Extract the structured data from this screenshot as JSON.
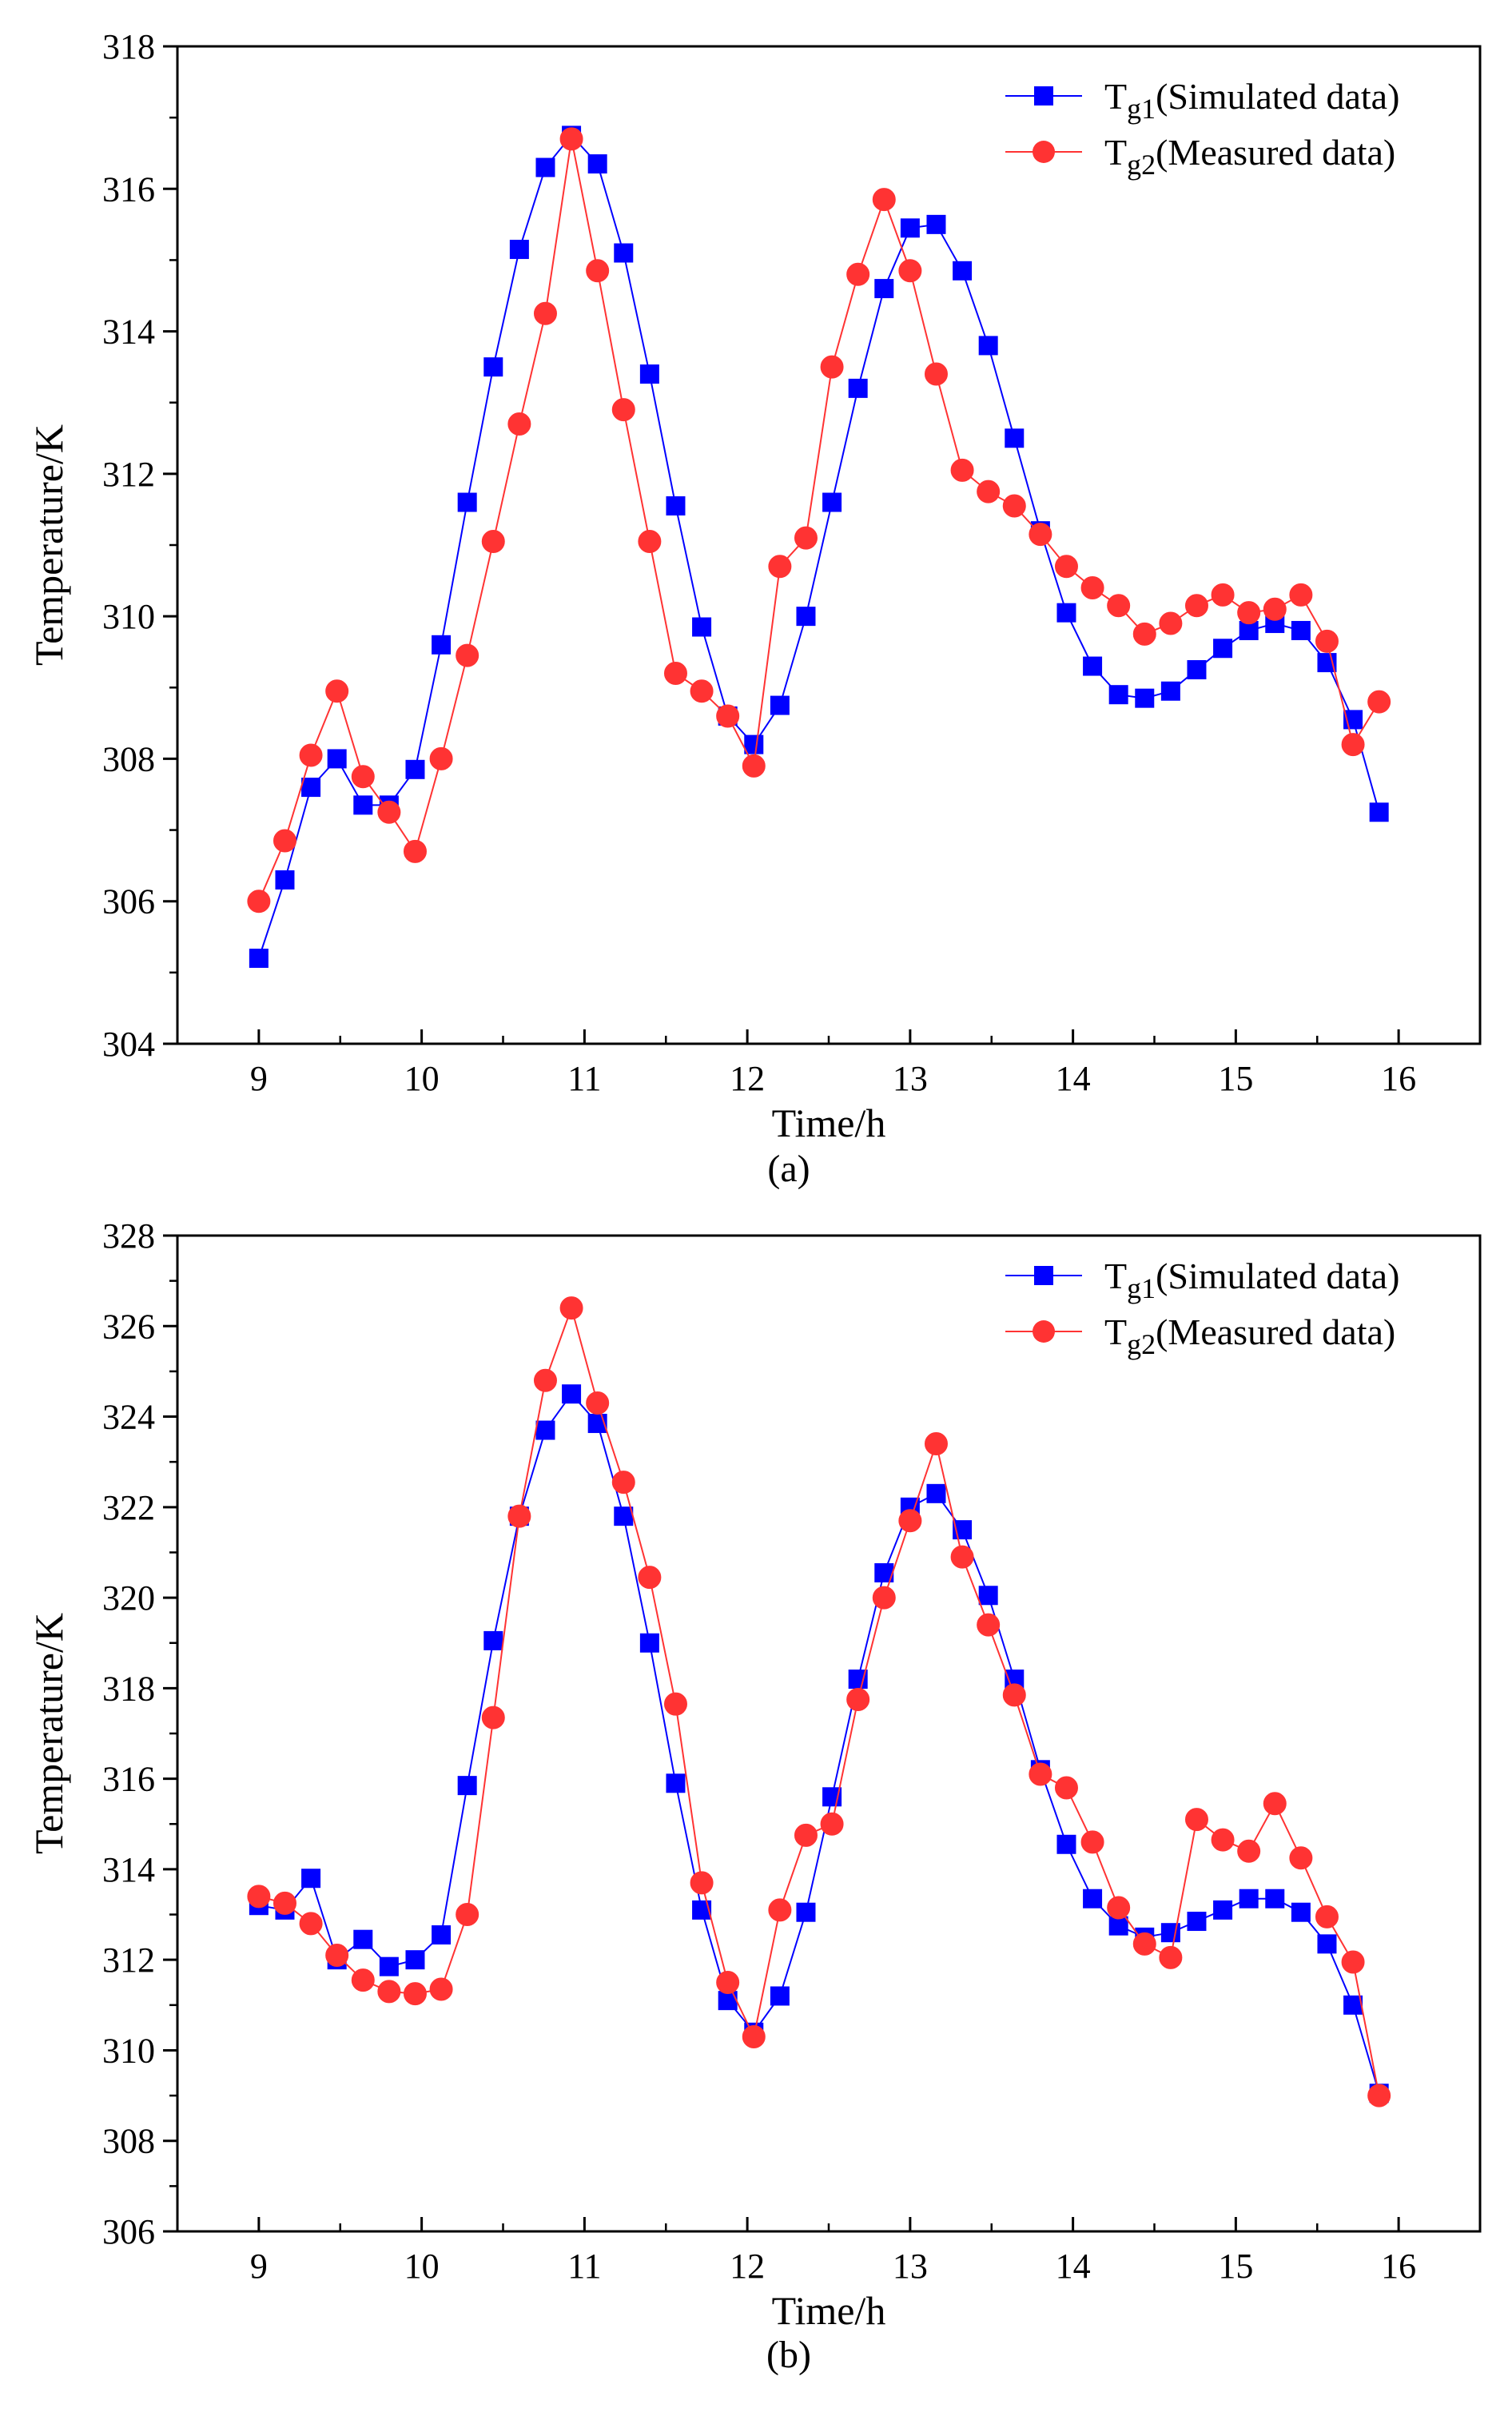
{
  "chart_data": [
    {
      "type": "line",
      "panel_label": "(a)",
      "xlabel": "Time/h",
      "ylabel": "Temperature/K",
      "xlim": [
        8.5,
        16.5
      ],
      "ylim": [
        304,
        318
      ],
      "xticks": [
        9,
        10,
        11,
        12,
        13,
        14,
        15,
        16
      ],
      "yticks": [
        304,
        306,
        308,
        310,
        312,
        314,
        316,
        318
      ],
      "legend_position": "top-right",
      "series": [
        {
          "name": "Tg1(Simulated data)",
          "label_main": "T",
          "label_sub": "g1",
          "label_rest": "(Simulated data)",
          "color": "#0000ff",
          "marker": "square",
          "x": [
            9.0,
            9.16,
            9.32,
            9.48,
            9.64,
            9.8,
            9.96,
            10.12,
            10.28,
            10.44,
            10.6,
            10.76,
            10.92,
            11.08,
            11.24,
            11.4,
            11.56,
            11.72,
            11.88,
            12.04,
            12.2,
            12.36,
            12.52,
            12.68,
            12.84,
            13.0,
            13.16,
            13.32,
            13.48,
            13.64,
            13.8,
            13.96,
            14.12,
            14.28,
            14.44,
            14.6,
            14.76,
            14.92,
            15.08,
            15.24,
            15.4,
            15.56,
            15.72,
            15.88
          ],
          "values": [
            305.2,
            306.3,
            307.6,
            308.0,
            307.35,
            307.35,
            307.85,
            309.6,
            311.6,
            313.5,
            315.15,
            316.3,
            316.75,
            316.35,
            315.1,
            313.4,
            311.55,
            309.85,
            308.6,
            308.2,
            308.75,
            310.0,
            311.6,
            313.2,
            314.6,
            315.45,
            315.5,
            314.85,
            313.8,
            312.5,
            311.2,
            310.05,
            309.3,
            308.9,
            308.85,
            308.95,
            309.25,
            309.55,
            309.8,
            309.9,
            309.8,
            309.35,
            308.55,
            307.25
          ]
        },
        {
          "name": "Tg2(Measured data)",
          "label_main": "T",
          "label_sub": "g2",
          "label_rest": "(Measured data)",
          "color": "#ff3333",
          "marker": "circle",
          "x": [
            9.0,
            9.16,
            9.32,
            9.48,
            9.64,
            9.8,
            9.96,
            10.12,
            10.28,
            10.44,
            10.6,
            10.76,
            10.92,
            11.08,
            11.24,
            11.4,
            11.56,
            11.72,
            11.88,
            12.04,
            12.2,
            12.36,
            12.52,
            12.68,
            12.84,
            13.0,
            13.16,
            13.32,
            13.48,
            13.64,
            13.8,
            13.96,
            14.12,
            14.28,
            14.44,
            14.6,
            14.76,
            14.92,
            15.08,
            15.24,
            15.4,
            15.56,
            15.72,
            15.88
          ],
          "values": [
            306.0,
            306.85,
            308.05,
            308.95,
            307.75,
            307.25,
            306.7,
            308.0,
            309.45,
            311.05,
            312.7,
            314.25,
            316.7,
            314.85,
            312.9,
            311.05,
            309.2,
            308.95,
            308.6,
            307.9,
            310.7,
            311.1,
            313.5,
            314.8,
            315.85,
            314.85,
            313.4,
            312.05,
            311.75,
            311.55,
            311.15,
            310.7,
            310.4,
            310.15,
            309.75,
            309.9,
            310.15,
            310.3,
            310.05,
            310.1,
            310.3,
            309.65,
            308.2,
            308.8
          ]
        }
      ]
    },
    {
      "type": "line",
      "panel_label": "(b)",
      "xlabel": "Time/h",
      "ylabel": "Temperature/K",
      "xlim": [
        8.5,
        16.5
      ],
      "ylim": [
        306,
        328
      ],
      "xticks": [
        9,
        10,
        11,
        12,
        13,
        14,
        15,
        16
      ],
      "yticks": [
        306,
        308,
        310,
        312,
        314,
        316,
        318,
        320,
        322,
        324,
        326,
        328
      ],
      "legend_position": "top-right",
      "series": [
        {
          "name": "Tg1(Simulated data)",
          "label_main": "T",
          "label_sub": "g1",
          "label_rest": "(Simulated data)",
          "color": "#0000ff",
          "marker": "square",
          "x": [
            9.0,
            9.16,
            9.32,
            9.48,
            9.64,
            9.8,
            9.96,
            10.12,
            10.28,
            10.44,
            10.6,
            10.76,
            10.92,
            11.08,
            11.24,
            11.4,
            11.56,
            11.72,
            11.88,
            12.04,
            12.2,
            12.36,
            12.52,
            12.68,
            12.84,
            13.0,
            13.16,
            13.32,
            13.48,
            13.64,
            13.8,
            13.96,
            14.12,
            14.28,
            14.44,
            14.6,
            14.76,
            14.92,
            15.08,
            15.24,
            15.4,
            15.56,
            15.72,
            15.88
          ],
          "values": [
            313.2,
            313.1,
            313.8,
            312.0,
            312.45,
            311.85,
            312.0,
            312.55,
            315.85,
            319.05,
            321.8,
            323.7,
            324.5,
            323.85,
            321.8,
            319.0,
            315.9,
            313.1,
            311.1,
            310.4,
            311.2,
            313.05,
            315.6,
            318.2,
            320.55,
            322.0,
            322.3,
            321.5,
            320.05,
            318.2,
            316.2,
            314.55,
            313.35,
            312.75,
            312.5,
            312.6,
            312.85,
            313.1,
            313.35,
            313.35,
            313.05,
            312.35,
            311.0,
            309.05
          ]
        },
        {
          "name": "Tg2(Measured data)",
          "label_main": "T",
          "label_sub": "g2",
          "label_rest": "(Measured data)",
          "color": "#ff3333",
          "marker": "circle",
          "x": [
            9.0,
            9.16,
            9.32,
            9.48,
            9.64,
            9.8,
            9.96,
            10.12,
            10.28,
            10.44,
            10.6,
            10.76,
            10.92,
            11.08,
            11.24,
            11.4,
            11.56,
            11.72,
            11.88,
            12.04,
            12.2,
            12.36,
            12.52,
            12.68,
            12.84,
            13.0,
            13.16,
            13.32,
            13.48,
            13.64,
            13.8,
            13.96,
            14.12,
            14.28,
            14.44,
            14.6,
            14.76,
            14.92,
            15.08,
            15.24,
            15.4,
            15.56,
            15.72,
            15.88
          ],
          "values": [
            313.4,
            313.25,
            312.8,
            312.1,
            311.55,
            311.3,
            311.25,
            311.35,
            313.0,
            317.35,
            321.8,
            324.8,
            326.4,
            324.3,
            322.55,
            320.45,
            317.65,
            313.7,
            311.5,
            310.3,
            313.1,
            314.75,
            315.0,
            317.75,
            320.0,
            321.7,
            323.4,
            320.9,
            319.4,
            317.85,
            316.1,
            315.8,
            314.6,
            313.15,
            312.35,
            312.05,
            315.1,
            314.65,
            314.4,
            315.45,
            314.25,
            312.95,
            311.95,
            309.0
          ]
        }
      ]
    }
  ]
}
